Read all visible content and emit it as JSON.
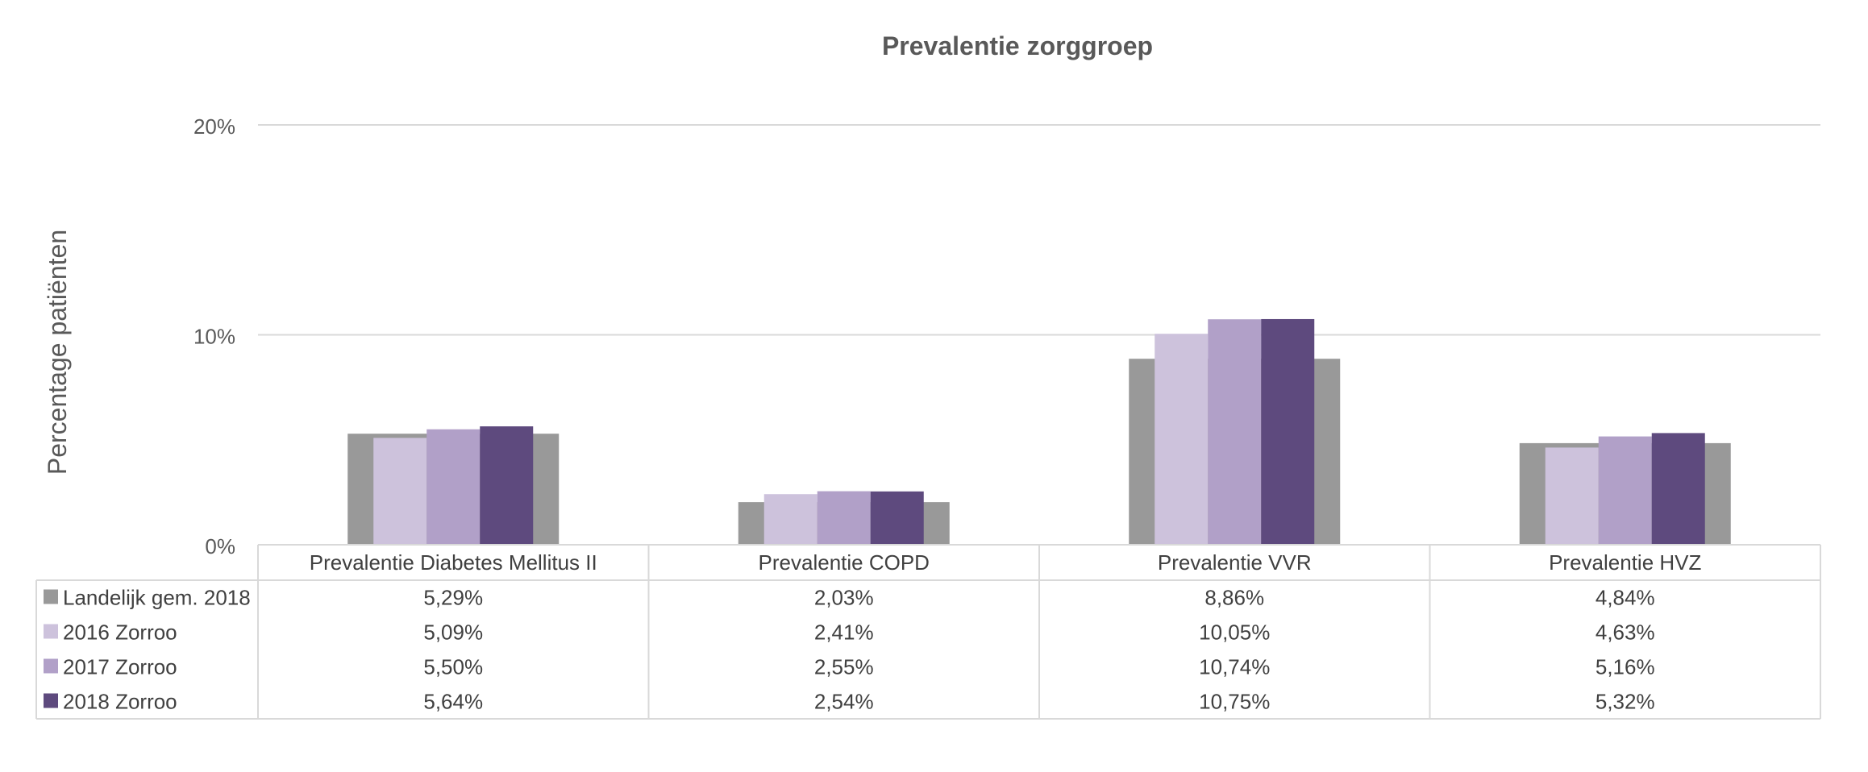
{
  "chart_data": {
    "type": "bar",
    "title": "Prevalentie zorggroep",
    "ylabel": "Percentage patiënten",
    "xlabel": "",
    "ylim": [
      0,
      20
    ],
    "yticks": [
      0,
      10,
      20
    ],
    "ytick_labels": [
      "0%",
      "10%",
      "20%"
    ],
    "grid": true,
    "legend": "data-table",
    "categories": [
      "Prevalentie Diabetes Mellitus II",
      "Prevalentie COPD",
      "Prevalentie VVR",
      "Prevalentie HVZ"
    ],
    "series": [
      {
        "name": "Landelijk gem. 2018",
        "color": "#999999",
        "values": [
          5.29,
          2.03,
          8.86,
          4.84
        ],
        "labels": [
          "5,29%",
          "2,03%",
          "8,86%",
          "4,84%"
        ]
      },
      {
        "name": "2016 Zorroo",
        "color": "#cdc2dc",
        "values": [
          5.09,
          2.41,
          10.05,
          4.63
        ],
        "labels": [
          "5,09%",
          "2,41%",
          "10,05%",
          "4,63%"
        ]
      },
      {
        "name": "2017 Zorroo",
        "color": "#b1a0c8",
        "values": [
          5.5,
          2.55,
          10.74,
          5.16
        ],
        "labels": [
          "5,50%",
          "2,55%",
          "10,74%",
          "5,16%"
        ]
      },
      {
        "name": "2018 Zorroo",
        "color": "#5e4a7e",
        "values": [
          5.64,
          2.54,
          10.75,
          5.32
        ],
        "labels": [
          "5,64%",
          "2,54%",
          "10,75%",
          "5,32%"
        ]
      }
    ]
  }
}
